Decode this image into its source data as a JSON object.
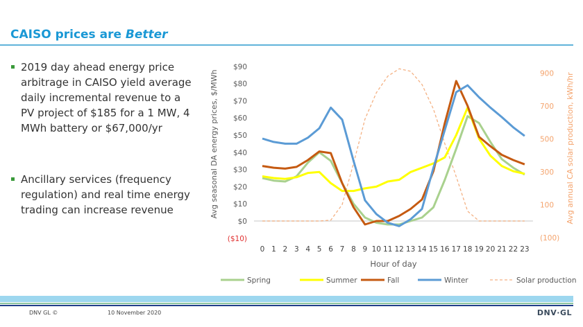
{
  "slide": {
    "title_main": "CAISO prices are ",
    "title_emph": "Better",
    "bullets": [
      "2019 day ahead energy price arbitrage in CAISO yield average daily incremental revenue to a PV project of $185 for a 1 MW, 4 MWh battery or $67,000/yr",
      "Ancillary services (frequency regulation) and real time energy trading can increase revenue"
    ],
    "footer_left": "DNV GL ©",
    "footer_date": "10 November 2020",
    "logo": "DNV·GL"
  },
  "chart_data": {
    "type": "line",
    "xlabel": "Hour of day",
    "ylabel": "Avg seasonal DA energy prices, $/MWh",
    "y2label": "Avg annual CA solar production, kWh/hr",
    "x": [
      0,
      1,
      2,
      3,
      4,
      5,
      6,
      7,
      8,
      9,
      10,
      11,
      12,
      13,
      14,
      15,
      16,
      17,
      18,
      19,
      20,
      21,
      22,
      23
    ],
    "x_tick_labels": [
      "0",
      "1",
      "2",
      "3",
      "4",
      "5",
      "6",
      "7",
      "8",
      "9",
      "10",
      "11",
      "12",
      "13",
      "14",
      "15",
      "16",
      "17",
      "18",
      "19",
      "20",
      "21",
      "22",
      "23"
    ],
    "ylim": [
      -10,
      90
    ],
    "y_tick_labels": [
      "($10)",
      "$0",
      "$10",
      "$20",
      "$30",
      "$40",
      "$50",
      "$60",
      "$70",
      "$80",
      "$90"
    ],
    "y_ticks": [
      -10,
      0,
      10,
      20,
      30,
      40,
      50,
      60,
      70,
      80,
      90
    ],
    "y2lim": [
      -100,
      950
    ],
    "y2_tick_labels": [
      "(100)",
      "100",
      "300",
      "500",
      "700",
      "900"
    ],
    "y2_ticks": [
      -100,
      100,
      300,
      500,
      700,
      900
    ],
    "grid": false,
    "legend": "bottom",
    "series": [
      {
        "name": "Spring",
        "axis": "left",
        "color": "#a9d18e",
        "dash": false,
        "values": [
          25,
          23.5,
          23,
          26,
          34,
          40,
          35,
          22,
          10,
          2,
          -1,
          -2,
          -2,
          0,
          2,
          8,
          24,
          42,
          61,
          57,
          46,
          36,
          31,
          27
        ]
      },
      {
        "name": "Summer",
        "axis": "left",
        "color": "#ffff00",
        "dash": false,
        "values": [
          26,
          25,
          24.5,
          25.5,
          28,
          28.5,
          22,
          17.5,
          17.5,
          19,
          20,
          23,
          24,
          28.5,
          31,
          33.5,
          37,
          50,
          66,
          48,
          38,
          32,
          29,
          27.5
        ]
      },
      {
        "name": "Fall",
        "axis": "left",
        "color": "#c55a11",
        "dash": false,
        "values": [
          32,
          31,
          30.5,
          31.5,
          35.5,
          40.5,
          39.5,
          22,
          8,
          -2,
          0,
          0,
          3,
          7,
          12.5,
          29,
          57,
          81.5,
          67,
          49,
          43.5,
          38.5,
          35.5,
          33
        ]
      },
      {
        "name": "Winter",
        "axis": "left",
        "color": "#5b9bd5",
        "dash": false,
        "values": [
          48,
          46,
          45,
          45,
          48.5,
          54,
          66,
          59,
          35,
          12,
          4,
          -1,
          -3,
          1,
          7,
          31,
          53,
          75,
          79,
          72,
          66,
          60.5,
          54.5,
          49.5
        ]
      },
      {
        "name": "Solar production",
        "axis": "right",
        "color": "#f4b183",
        "dash": true,
        "values": [
          0,
          0,
          0,
          0,
          0,
          0,
          5,
          100,
          350,
          620,
          780,
          880,
          925,
          910,
          830,
          680,
          470,
          270,
          60,
          0,
          0,
          0,
          0,
          0
        ]
      }
    ],
    "colors": {
      "left_axis": "#595959",
      "right_axis": "#f4a36c",
      "negative_label": "#e03030"
    }
  }
}
